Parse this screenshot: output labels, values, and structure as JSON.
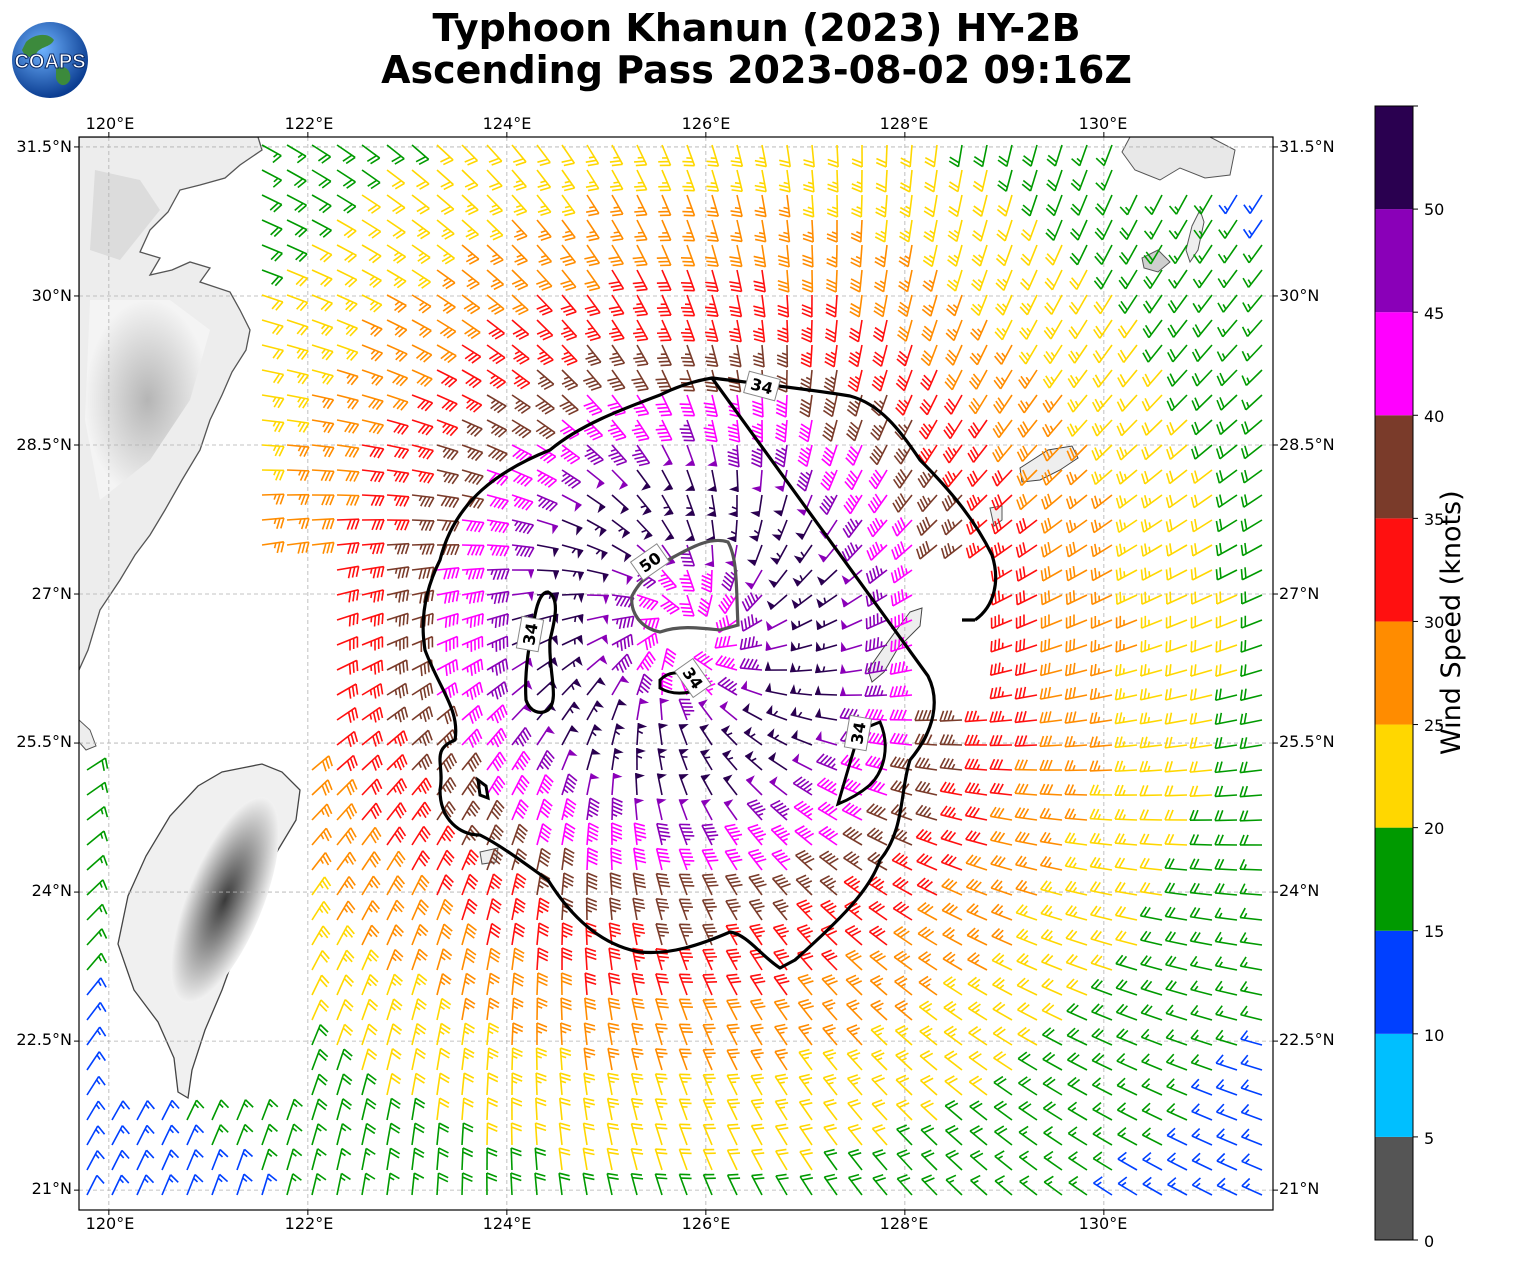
{
  "title": {
    "line1": "Typhoon Khanun (2023) HY-2B",
    "line2": "Ascending Pass 2023-08-02 09:16Z"
  },
  "logo": {
    "text": "COAPS"
  },
  "axes": {
    "lon_labels": [
      "120°E",
      "122°E",
      "124°E",
      "126°E",
      "128°E",
      "130°E"
    ],
    "lat_labels": [
      "31.5°N",
      "30°N",
      "28.5°N",
      "27°N",
      "25.5°N",
      "24°N",
      "22.5°N",
      "21°N"
    ]
  },
  "contours": {
    "r34": "34",
    "r50": "50"
  },
  "colorbar": {
    "title": "Wind Speed (knots)",
    "tick_labels": [
      "0",
      "5",
      "10",
      "15",
      "20",
      "25",
      "30",
      "35",
      "40",
      "45",
      "50"
    ],
    "bins": [
      {
        "range": [
          0,
          5
        ],
        "color": "#555555"
      },
      {
        "range": [
          5,
          10
        ],
        "color": "#00bfff"
      },
      {
        "range": [
          10,
          15
        ],
        "color": "#0040ff"
      },
      {
        "range": [
          15,
          20
        ],
        "color": "#009a00"
      },
      {
        "range": [
          20,
          25
        ],
        "color": "#ffd700"
      },
      {
        "range": [
          25,
          30
        ],
        "color": "#ff8c00"
      },
      {
        "range": [
          30,
          35
        ],
        "color": "#ff1010"
      },
      {
        "range": [
          35,
          40
        ],
        "color": "#7a3b2a"
      },
      {
        "range": [
          40,
          45
        ],
        "color": "#ff00ff"
      },
      {
        "range": [
          45,
          50
        ],
        "color": "#8a00b8"
      },
      {
        "range": [
          50,
          55
        ],
        "color": "#2a0050"
      }
    ]
  },
  "map": {
    "extent_lon": [
      119.7,
      131.7
    ],
    "extent_lat": [
      20.8,
      31.6
    ],
    "storm_center": {
      "lon": 125.8,
      "lat": 26.6
    },
    "max_wind_kt": 52,
    "rotation": "counterclockwise"
  }
}
